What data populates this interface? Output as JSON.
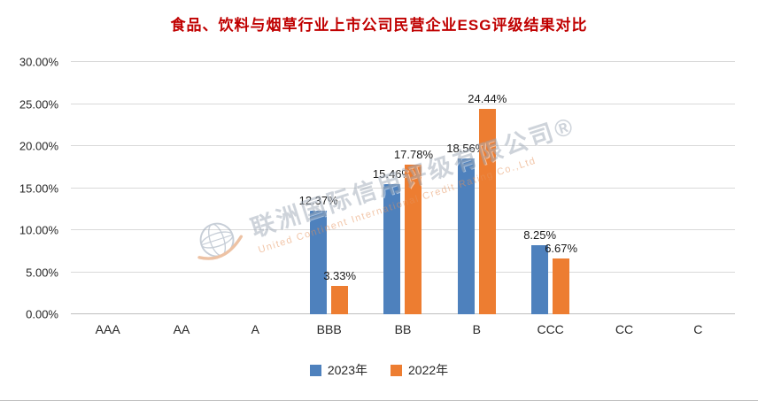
{
  "title": "食品、饮料与烟草行业上市公司民营企业ESG评级结果对比",
  "colors": {
    "title": "#c00000",
    "series_2023": "#4e81bd",
    "series_2022": "#ed7d31",
    "gridline": "#d9d9d9"
  },
  "watermark": {
    "line1": "联洲国际信用评级有限公司®",
    "line2": "United Continent International Credit Rating Co.,Ltd"
  },
  "chart_data": {
    "type": "bar",
    "title": "食品、饮料与烟草行业上市公司民营企业ESG评级结果对比",
    "categories": [
      "AAA",
      "AA",
      "A",
      "BBB",
      "BB",
      "B",
      "CCC",
      "CC",
      "C"
    ],
    "series": [
      {
        "name": "2023年",
        "color": "#4e81bd",
        "values": [
          0,
          0,
          0,
          12.37,
          15.46,
          18.56,
          8.25,
          0,
          0
        ]
      },
      {
        "name": "2022年",
        "color": "#ed7d31",
        "values": [
          0,
          0,
          0,
          3.33,
          17.78,
          24.44,
          6.67,
          0,
          0
        ]
      }
    ],
    "data_labels": [
      "12.37%",
      "3.33%",
      "15.46%",
      "17.78%",
      "18.56%",
      "24.44%",
      "8.25%",
      "6.67%"
    ],
    "ylim": [
      0,
      30
    ],
    "ytick_step": 5,
    "y_ticks": [
      "0.00%",
      "5.00%",
      "10.00%",
      "15.00%",
      "20.00%",
      "25.00%",
      "30.00%"
    ],
    "grid": true,
    "legend_position": "bottom",
    "xlabel": "",
    "ylabel": ""
  }
}
